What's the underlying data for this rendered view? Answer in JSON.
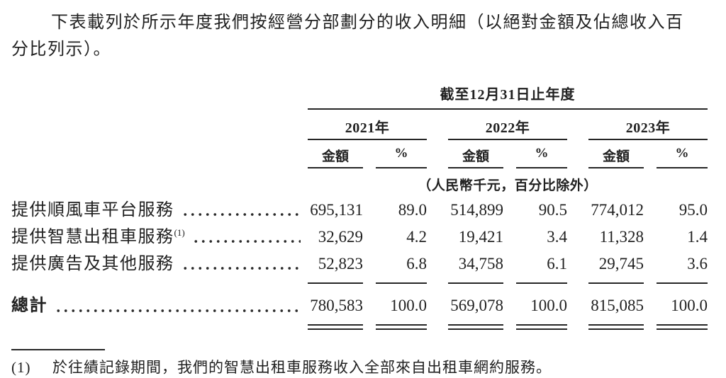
{
  "intro": {
    "line1": "下表載列於所示年度我們按經營分部劃分的收入明細（以絕對金額及佔總收入百",
    "line2": "分比列示）。"
  },
  "table": {
    "period_header": "截至12月31日止年度",
    "unit_note": "（人民幣千元，百分比除外）",
    "year_groups": [
      {
        "year": "2021年",
        "amount_label": "金額",
        "pct_label": "%"
      },
      {
        "year": "2022年",
        "amount_label": "金額",
        "pct_label": "%"
      },
      {
        "year": "2023年",
        "amount_label": "金額",
        "pct_label": "%"
      }
    ],
    "rows": [
      {
        "label": "提供順風車平台服務",
        "sup": "",
        "values": [
          "695,131",
          "89.0",
          "514,899",
          "90.5",
          "774,012",
          "95.0"
        ]
      },
      {
        "label": "提供智慧出租車服務",
        "sup": "(1)",
        "values": [
          "32,629",
          "4.2",
          "19,421",
          "3.4",
          "11,328",
          "1.4"
        ]
      },
      {
        "label": "提供廣告及其他服務",
        "sup": "",
        "values": [
          "52,823",
          "6.8",
          "34,758",
          "6.1",
          "29,745",
          "3.6"
        ]
      }
    ],
    "total_row": {
      "label": "總計",
      "values": [
        "780,583",
        "100.0",
        "569,078",
        "100.0",
        "815,085",
        "100.0"
      ]
    }
  },
  "footnote": {
    "marker": "(1)",
    "text": "於往績記錄期間，我們的智慧出租車服務收入全部來自出租車網約服務。"
  }
}
